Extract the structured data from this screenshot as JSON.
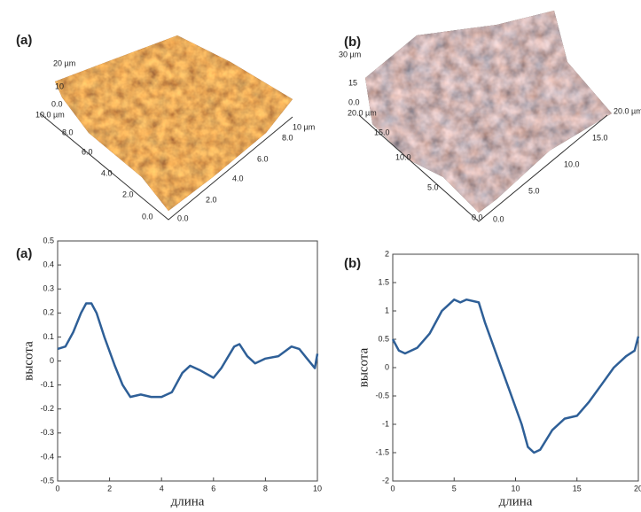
{
  "images": [
    {
      "label": "(a)",
      "tick_labels": [
        "20 µm",
        "10",
        "0.0",
        "10.0 µm",
        "8.0",
        "6.0",
        "4.0",
        "2.0",
        "0.0",
        "0.0",
        "2.0",
        "4.0",
        "6.0",
        "8.0",
        "10 µm"
      ]
    },
    {
      "label": "(b)",
      "tick_labels": [
        "30 µm",
        "15",
        "0.0",
        "20.0 µm",
        "15.0",
        "10.0",
        "5.0",
        "0.0",
        "0.0",
        "5.0",
        "10.0",
        "15.0",
        "20.0 µm"
      ]
    }
  ],
  "chart_data": [
    {
      "type": "line",
      "title": "(a)",
      "x_label": "длина",
      "y_label": "высота",
      "color": "#2e5f97",
      "x": [
        0,
        0.3,
        0.6,
        0.9,
        1.1,
        1.3,
        1.5,
        1.8,
        2.2,
        2.5,
        2.8,
        3.2,
        3.6,
        4.0,
        4.4,
        4.8,
        5.1,
        5.5,
        6.0,
        6.3,
        6.8,
        7.0,
        7.3,
        7.6,
        8.0,
        8.5,
        9.0,
        9.3,
        9.6,
        9.9,
        10
      ],
      "values": [
        0.05,
        0.06,
        0.12,
        0.2,
        0.24,
        0.24,
        0.2,
        0.1,
        -0.02,
        -0.1,
        -0.15,
        -0.14,
        -0.15,
        -0.15,
        -0.13,
        -0.05,
        -0.02,
        -0.04,
        -0.07,
        -0.03,
        0.06,
        0.07,
        0.02,
        -0.01,
        0.01,
        0.02,
        0.06,
        0.05,
        0.01,
        -0.03,
        0.03
      ],
      "xlim": [
        0,
        10
      ],
      "xticks": [
        0,
        2,
        4,
        6,
        8,
        10
      ],
      "ylim": [
        -0.5,
        0.5
      ],
      "yticks": [
        -0.5,
        -0.4,
        -0.3,
        -0.2,
        -0.1,
        0,
        0.1,
        0.2,
        0.3,
        0.4,
        0.5
      ]
    },
    {
      "type": "line",
      "title": "(b)",
      "x_label": "длина",
      "y_label": "высота",
      "color": "#2e5f97",
      "x": [
        0,
        0.5,
        1,
        2,
        3,
        4,
        5,
        5.5,
        6,
        7,
        7.5,
        8.5,
        9.5,
        10.5,
        11,
        11.5,
        12,
        13,
        14,
        15,
        16,
        17,
        18,
        19,
        19.7,
        20
      ],
      "values": [
        0.5,
        0.3,
        0.25,
        0.35,
        0.6,
        1.0,
        1.2,
        1.15,
        1.2,
        1.15,
        0.8,
        0.2,
        -0.4,
        -1.0,
        -1.4,
        -1.5,
        -1.45,
        -1.1,
        -0.9,
        -0.85,
        -0.6,
        -0.3,
        0,
        0.2,
        0.3,
        0.55
      ],
      "xlim": [
        0,
        20
      ],
      "xticks": [
        0,
        5,
        10,
        15,
        20
      ],
      "ylim": [
        -2,
        2
      ],
      "yticks": [
        -2,
        -1.5,
        -1,
        -0.5,
        0,
        0.5,
        1,
        1.5,
        2
      ]
    }
  ]
}
